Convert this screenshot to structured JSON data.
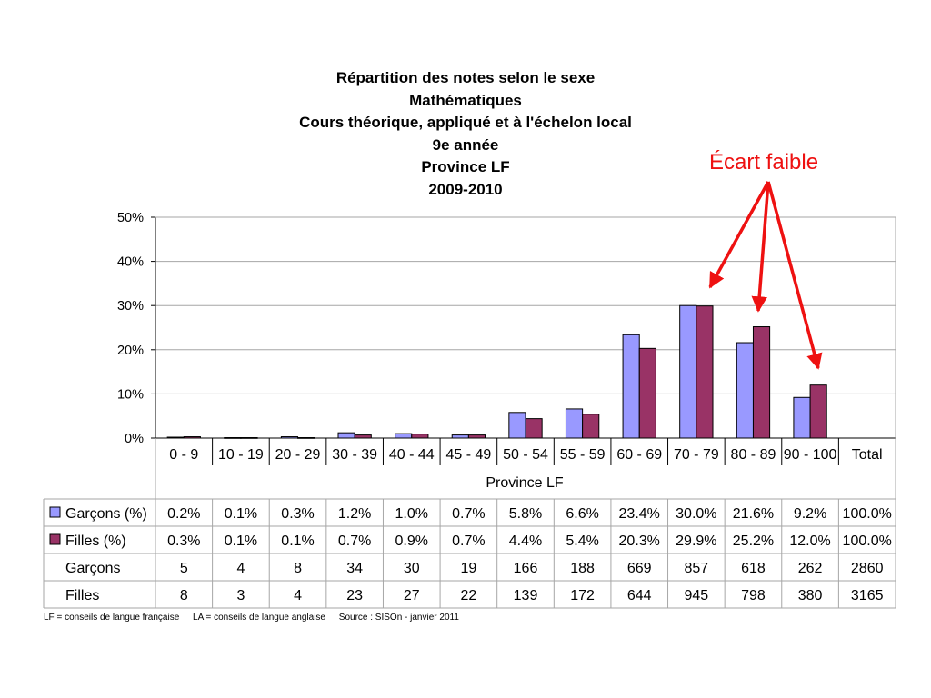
{
  "title_lines": [
    "Répartition des notes selon le sexe",
    "Mathématiques",
    "Cours théorique, appliqué et à l'échelon local",
    "9e année",
    "Province LF",
    "2009-2010"
  ],
  "annotation": "Écart faible",
  "colors": {
    "garcons": "#9999ff",
    "filles": "#993366",
    "arrow": "#ee1111"
  },
  "footnotes": [
    "LF = conseils de langue française",
    "LA = conseils de langue anglaise",
    "Source : SISOn - janvier 2011"
  ],
  "chart_data": {
    "type": "bar",
    "categories": [
      "0 - 9",
      "10 - 19",
      "20 - 29",
      "30 - 39",
      "40 - 44",
      "45 - 49",
      "50 - 54",
      "55 - 59",
      "60 - 69",
      "70 - 79",
      "80 - 89",
      "90 - 100",
      "Total"
    ],
    "xlabel": "Province LF",
    "ylabel": "",
    "ylim": [
      0,
      50
    ],
    "yticks": [
      "0%",
      "10%",
      "20%",
      "30%",
      "40%",
      "50%"
    ],
    "grid": true,
    "legend": "table",
    "series": [
      {
        "name": "Garçons (%)",
        "values": [
          0.2,
          0.1,
          0.3,
          1.2,
          1.0,
          0.7,
          5.8,
          6.6,
          23.4,
          30.0,
          21.6,
          9.2,
          null
        ]
      },
      {
        "name": "Filles (%)",
        "values": [
          0.3,
          0.1,
          0.1,
          0.7,
          0.9,
          0.7,
          4.4,
          5.4,
          20.3,
          29.9,
          25.2,
          12.0,
          null
        ]
      }
    ],
    "table": [
      {
        "label": "Garçons (%)",
        "swatch": "garcons",
        "cells": [
          "0.2%",
          "0.1%",
          "0.3%",
          "1.2%",
          "1.0%",
          "0.7%",
          "5.8%",
          "6.6%",
          "23.4%",
          "30.0%",
          "21.6%",
          "9.2%",
          "100.0%"
        ]
      },
      {
        "label": "Filles (%)",
        "swatch": "filles",
        "cells": [
          "0.3%",
          "0.1%",
          "0.1%",
          "0.7%",
          "0.9%",
          "0.7%",
          "4.4%",
          "5.4%",
          "20.3%",
          "29.9%",
          "25.2%",
          "12.0%",
          "100.0%"
        ]
      },
      {
        "label": "Garçons",
        "swatch": null,
        "cells": [
          "5",
          "4",
          "8",
          "34",
          "30",
          "19",
          "166",
          "188",
          "669",
          "857",
          "618",
          "262",
          "2860"
        ]
      },
      {
        "label": "Filles",
        "swatch": null,
        "cells": [
          "8",
          "3",
          "4",
          "23",
          "27",
          "22",
          "139",
          "172",
          "644",
          "945",
          "798",
          "380",
          "3165"
        ]
      }
    ]
  }
}
